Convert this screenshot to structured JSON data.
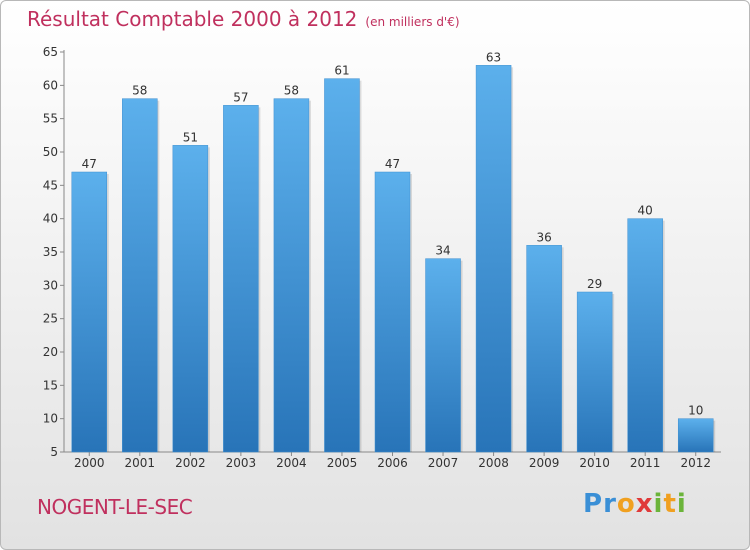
{
  "header": {
    "title": "Résultat Comptable 2000 à 2012",
    "subtitle": "(en milliers d'€)"
  },
  "footer": {
    "place": "NOGENT-LE-SEC",
    "logo": "Proxiti"
  },
  "colors": {
    "title": "#c0305e",
    "bar_light": "#5aaeea",
    "bar_dark": "#2a78bd"
  },
  "chart_data": {
    "type": "bar",
    "title": "Résultat Comptable 2000 à 2012",
    "categories": [
      "2000",
      "2001",
      "2002",
      "2003",
      "2004",
      "2005",
      "2006",
      "2007",
      "2008",
      "2009",
      "2010",
      "2011",
      "2012"
    ],
    "values": [
      47,
      58,
      51,
      57,
      58,
      61,
      47,
      34,
      63,
      36,
      29,
      40,
      10
    ],
    "ylim": [
      5,
      65
    ],
    "yticks": [
      5,
      10,
      15,
      20,
      25,
      30,
      35,
      40,
      45,
      50,
      55,
      60,
      65
    ],
    "grid": false,
    "legend": "none",
    "data_labels": true
  }
}
